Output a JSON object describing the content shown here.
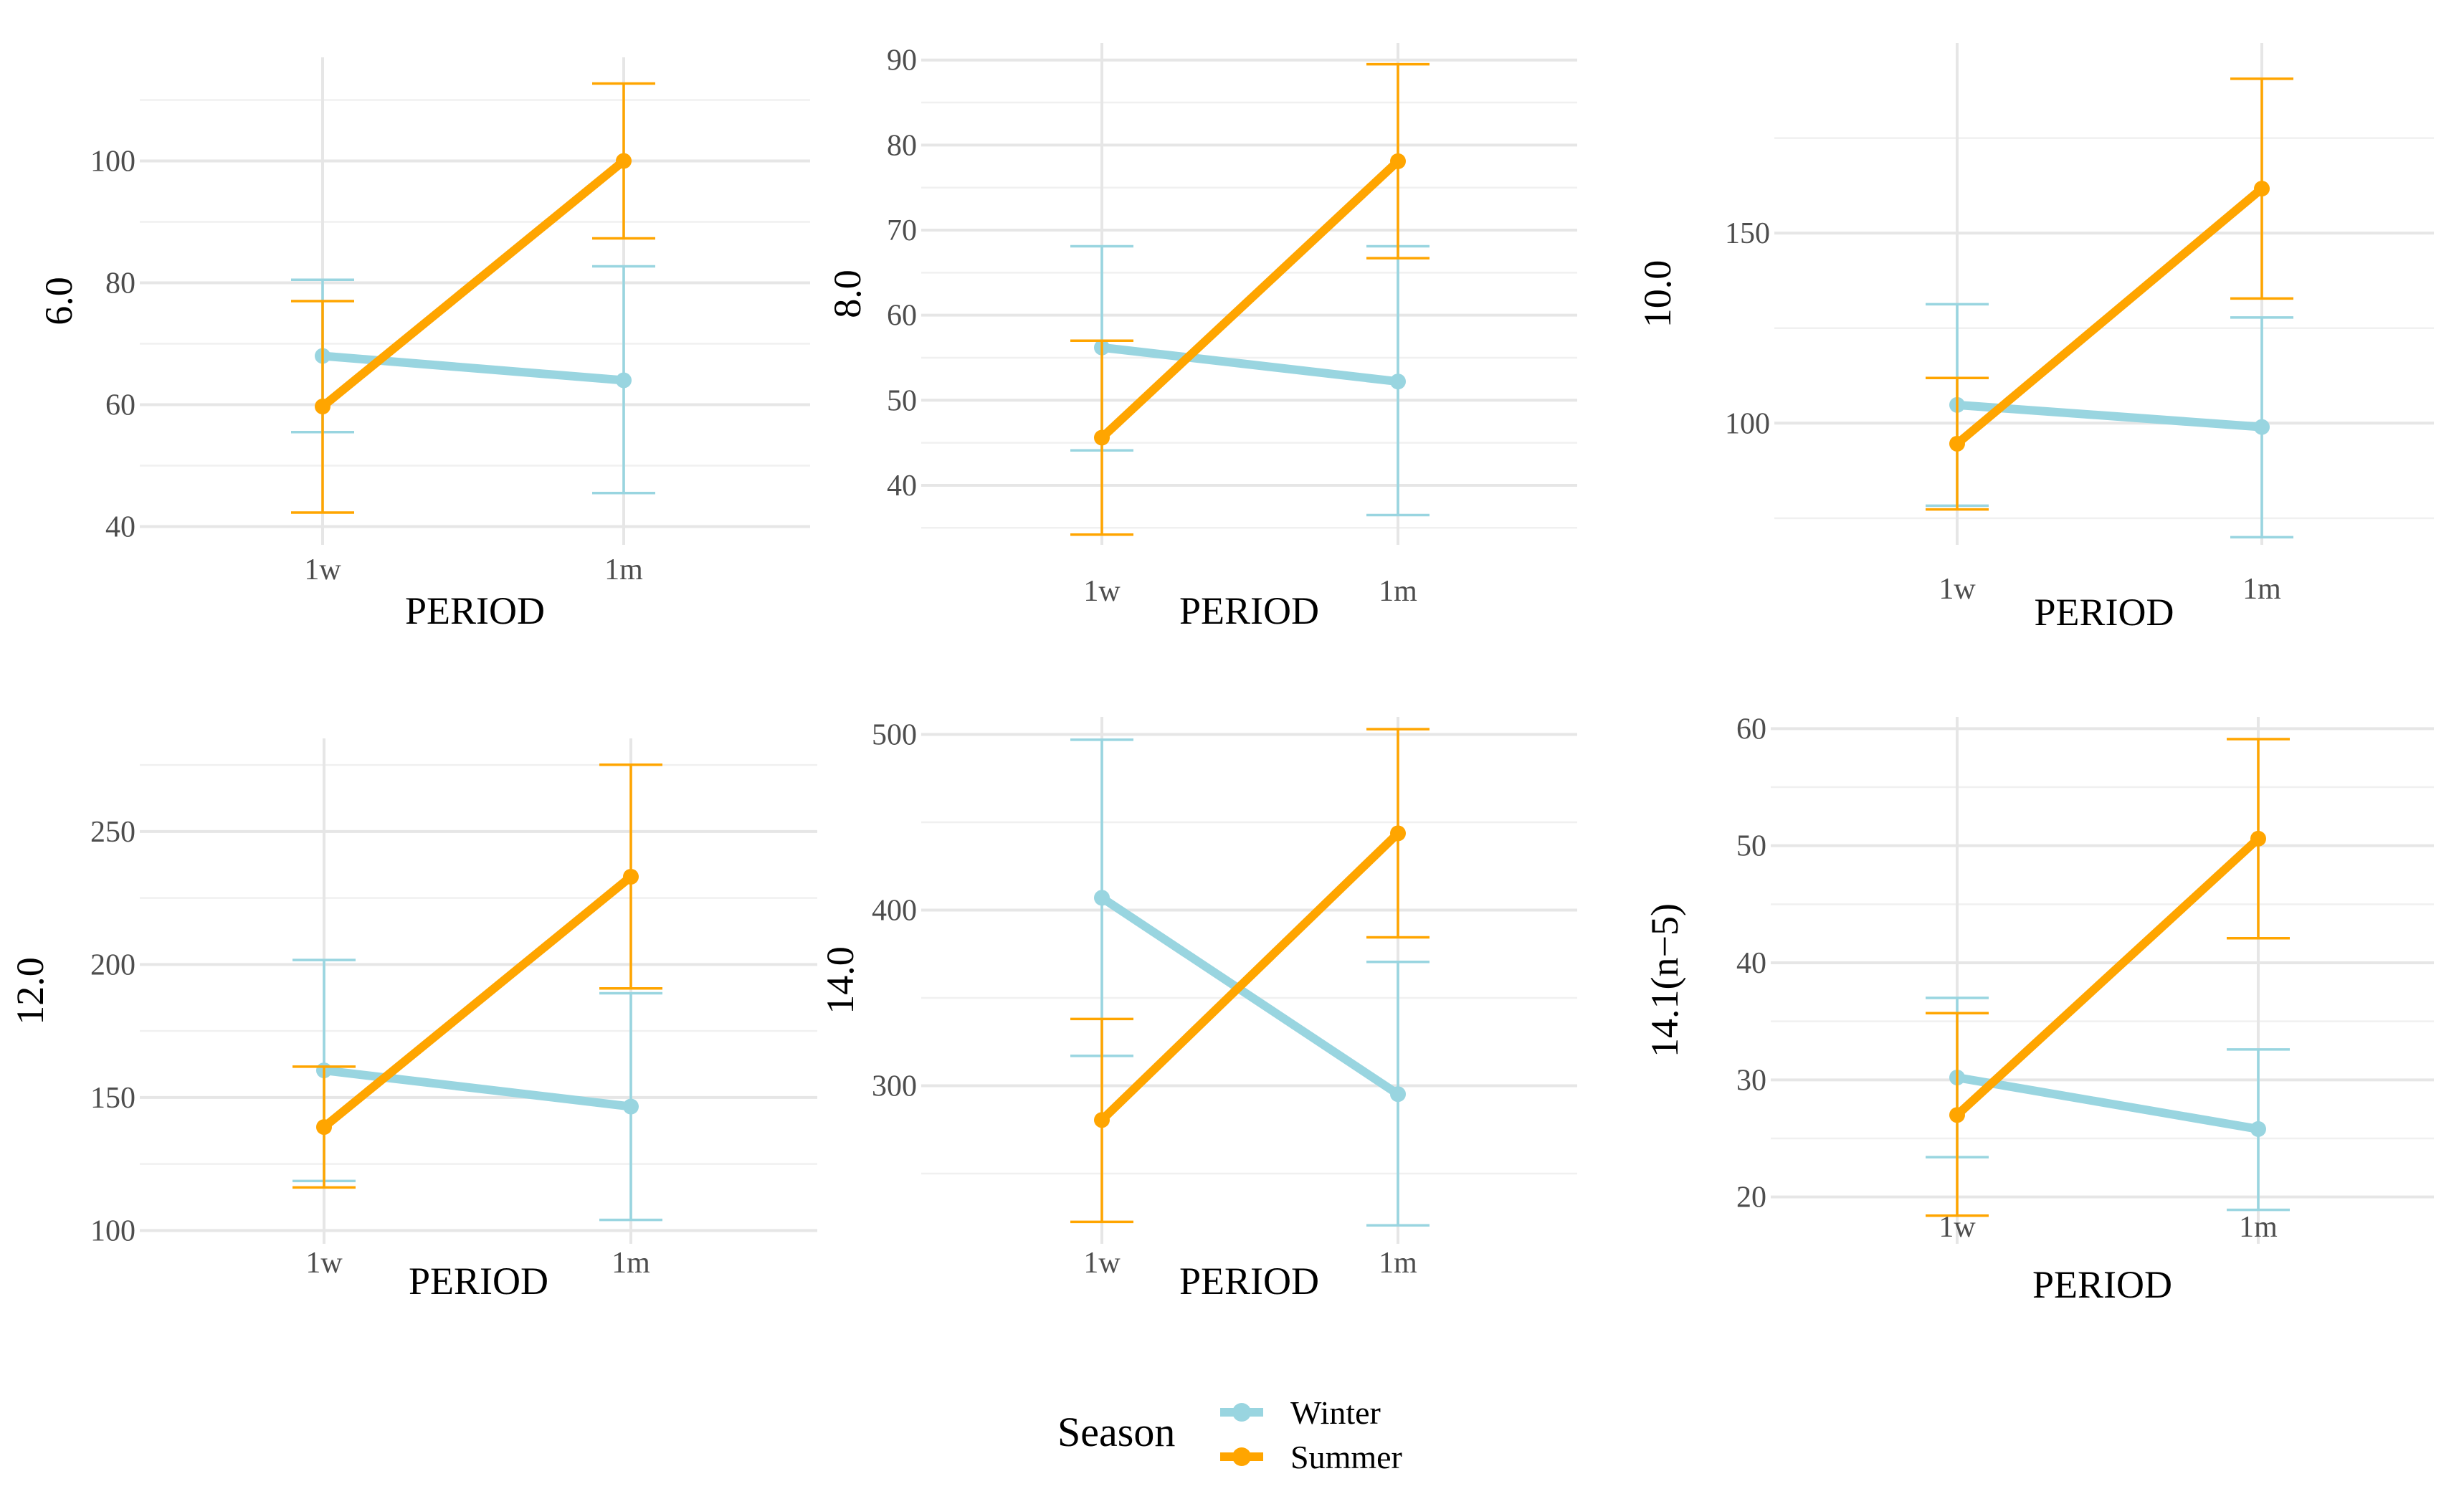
{
  "colors": {
    "winter": "#99d5e0",
    "summer": "#ffa500"
  },
  "legend": {
    "title": "Season",
    "entries": [
      {
        "label": "Winter",
        "series_key": "winter"
      },
      {
        "label": "Summer",
        "series_key": "summer"
      }
    ]
  },
  "chart_data": [
    {
      "type": "line",
      "xlabel": "PERIOD",
      "ylabel": "6.0",
      "categories": [
        "1w",
        "1m"
      ],
      "ylim": [
        37,
        117
      ],
      "y_ticks": [
        40,
        60,
        80,
        100
      ],
      "series": [
        {
          "name": "Winter",
          "key": "winter",
          "values": [
            68,
            64
          ],
          "err_low": [
            55.5,
            45.5
          ],
          "err_high": [
            80.5,
            82.7
          ]
        },
        {
          "name": "Summer",
          "key": "summer",
          "values": [
            59.7,
            100
          ],
          "err_low": [
            42.3,
            87.3
          ],
          "err_high": [
            77,
            112.7
          ]
        }
      ]
    },
    {
      "type": "line",
      "xlabel": "PERIOD",
      "ylabel": "8.0",
      "categories": [
        "1w",
        "1m"
      ],
      "ylim": [
        33,
        92
      ],
      "y_ticks": [
        40,
        50,
        60,
        70,
        80,
        90
      ],
      "series": [
        {
          "name": "Winter",
          "key": "winter",
          "values": [
            56.2,
            52.2
          ],
          "err_low": [
            44.1,
            36.5
          ],
          "err_high": [
            68.1,
            68.1
          ]
        },
        {
          "name": "Summer",
          "key": "summer",
          "values": [
            45.6,
            78.1
          ],
          "err_low": [
            34.2,
            66.7
          ],
          "err_high": [
            57,
            89.5
          ]
        }
      ]
    },
    {
      "type": "line",
      "xlabel": "PERIOD",
      "ylabel": "10.0",
      "categories": [
        "1w",
        "1m"
      ],
      "ylim": [
        68,
        200
      ],
      "y_ticks": [
        100,
        150
      ],
      "series": [
        {
          "name": "Winter",
          "key": "winter",
          "values": [
            104.8,
            99
          ],
          "err_low": [
            78.3,
            70
          ],
          "err_high": [
            131.3,
            127.8
          ]
        },
        {
          "name": "Summer",
          "key": "summer",
          "values": [
            94.6,
            161.7
          ],
          "err_low": [
            77.3,
            132.8
          ],
          "err_high": [
            111.9,
            190.6
          ]
        }
      ]
    },
    {
      "type": "line",
      "xlabel": "PERIOD",
      "ylabel": "12.0",
      "categories": [
        "1w",
        "1m"
      ],
      "ylim": [
        95,
        285
      ],
      "y_ticks": [
        100,
        150,
        200,
        250
      ],
      "series": [
        {
          "name": "Winter",
          "key": "winter",
          "values": [
            160.2,
            146.6
          ],
          "err_low": [
            118.6,
            104
          ],
          "err_high": [
            201.7,
            189.2
          ]
        },
        {
          "name": "Summer",
          "key": "summer",
          "values": [
            138.9,
            233
          ],
          "err_low": [
            116.2,
            191
          ],
          "err_high": [
            161.6,
            275.1
          ]
        }
      ]
    },
    {
      "type": "line",
      "xlabel": "PERIOD",
      "ylabel": "14.0",
      "categories": [
        "1w",
        "1m"
      ],
      "ylim": [
        210,
        510
      ],
      "y_ticks": [
        300,
        400,
        500
      ],
      "series": [
        {
          "name": "Winter",
          "key": "winter",
          "values": [
            407,
            295.2
          ],
          "err_low": [
            317,
            220.5
          ],
          "err_high": [
            497,
            370.5
          ]
        },
        {
          "name": "Summer",
          "key": "summer",
          "values": [
            280.5,
            443.7
          ],
          "err_low": [
            222.5,
            384.5
          ],
          "err_high": [
            338,
            503
          ]
        }
      ]
    },
    {
      "type": "line",
      "xlabel": "PERIOD",
      "ylabel": "14.1(n−5)",
      "categories": [
        "1w",
        "1m"
      ],
      "ylim": [
        16,
        61
      ],
      "y_ticks": [
        20,
        30,
        40,
        50,
        60
      ],
      "series": [
        {
          "name": "Winter",
          "key": "winter",
          "values": [
            30.2,
            25.8
          ],
          "err_low": [
            23.4,
            18.9
          ],
          "err_high": [
            37,
            32.6
          ]
        },
        {
          "name": "Summer",
          "key": "summer",
          "values": [
            27,
            50.6
          ],
          "err_low": [
            18.4,
            42.1
          ],
          "err_high": [
            35.7,
            59.1
          ]
        }
      ]
    }
  ]
}
